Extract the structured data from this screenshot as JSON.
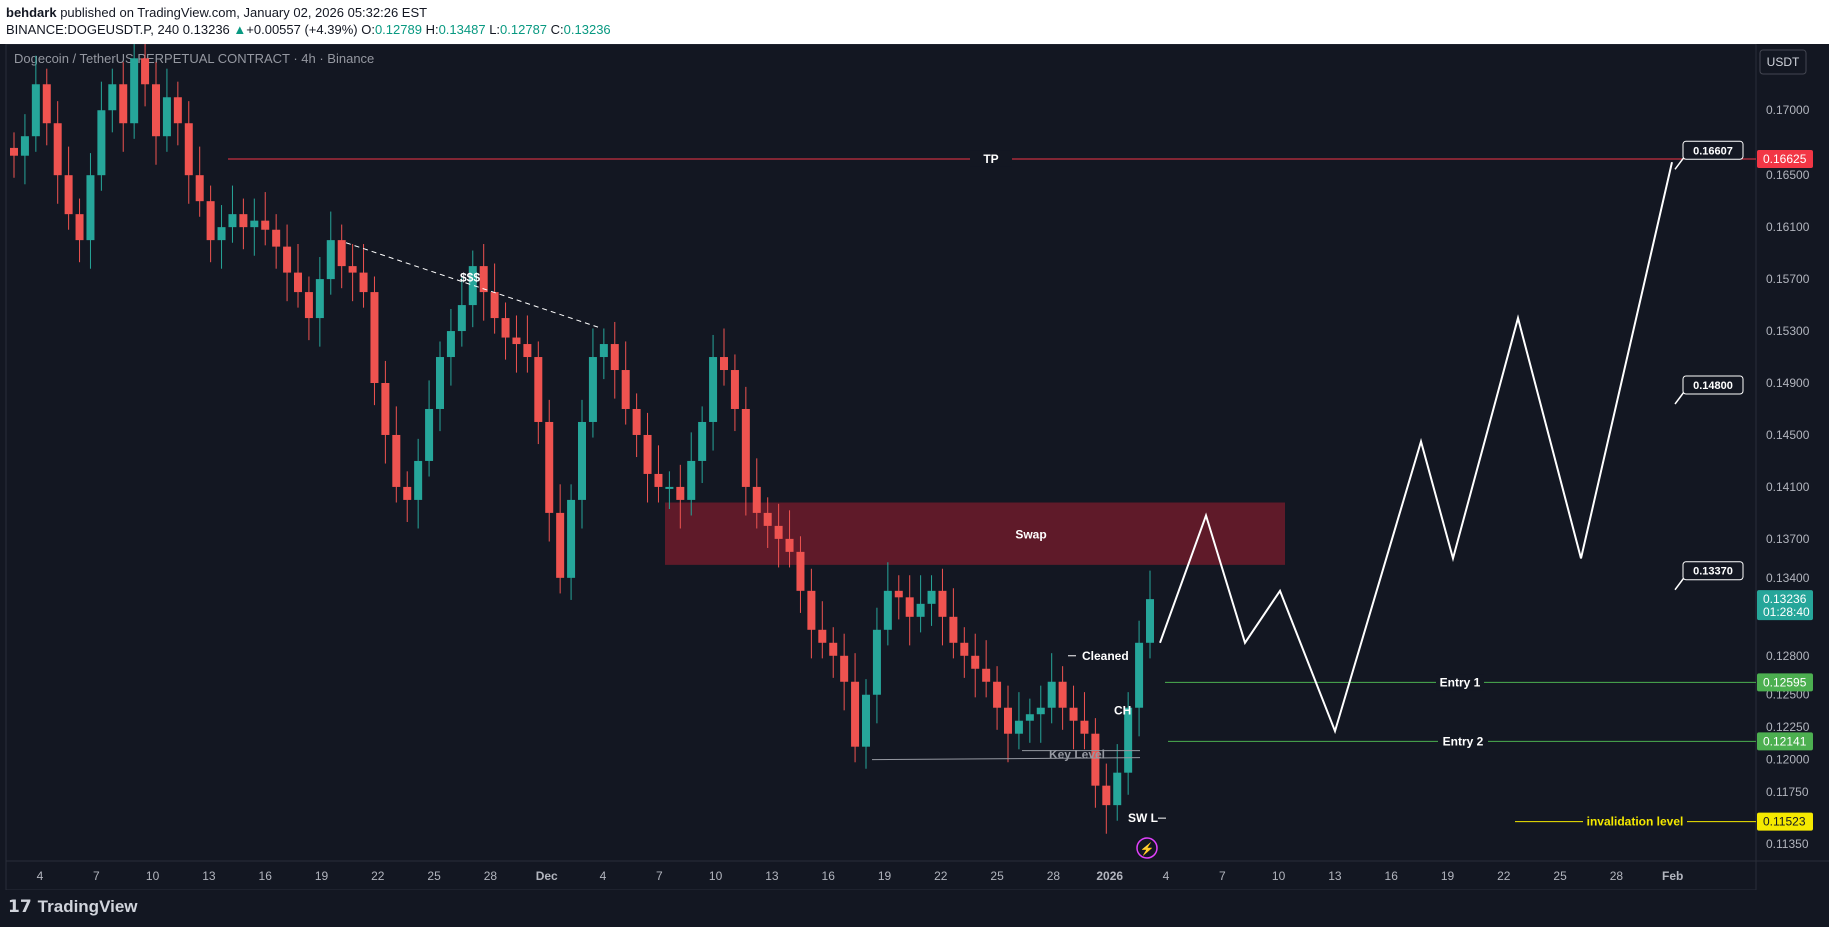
{
  "header": {
    "author": "behdark",
    "published": " published on TradingView.com, January 02, 2026 05:32:26 EST",
    "symbol": "BINANCE:DOGEUSDT.P, 240",
    "last": "0.13236",
    "change_arrow": "▲",
    "change": "+0.00557 (+4.39%)",
    "o_label": "O:",
    "o": "0.12789",
    "h_label": "H:",
    "h": "0.13487",
    "l_label": "L:",
    "l": "0.12787",
    "c_label": "C:",
    "c": "0.13236"
  },
  "chart_title": "Dogecoin / TetherUS PERPETUAL CONTRACT · 4h · Binance",
  "currency_button": "USDT",
  "footer": {
    "logo_mark": "17",
    "logo_text": "TradingView"
  },
  "colors": {
    "background": "#131722",
    "up": "#26a69a",
    "down": "#ef5350",
    "tp": "#f23645",
    "entry": "#4caf50",
    "invalidation": "#f5e900",
    "swap_zone": "#6d1b2a",
    "projection": "#ffffff"
  },
  "chart_data": {
    "type": "candlestick",
    "ylim": [
      0.1122,
      0.1751
    ],
    "y_ticks": [
      "0.17000",
      "0.16500",
      "0.16100",
      "0.15700",
      "0.15300",
      "0.14900",
      "0.14500",
      "0.14100",
      "0.13700",
      "0.13400",
      "0.12800",
      "0.12500",
      "0.12250",
      "0.12000",
      "0.11750",
      "0.11350"
    ],
    "x_ticks": [
      "4",
      "7",
      "10",
      "13",
      "16",
      "19",
      "22",
      "25",
      "28",
      "Dec",
      "4",
      "7",
      "10",
      "13",
      "16",
      "19",
      "22",
      "25",
      "28",
      "2026",
      "4",
      "7",
      "10",
      "13",
      "16",
      "19",
      "22",
      "25",
      "28",
      "Feb"
    ],
    "price_labels": [
      {
        "text": "0.16625",
        "value": 0.16625,
        "color": "#f23645"
      },
      {
        "text": "0.13236",
        "text2": "01:28:40",
        "value": 0.13236,
        "color": "#26a69a"
      },
      {
        "text": "0.12595",
        "value": 0.12595,
        "color": "#4caf50"
      },
      {
        "text": "0.12141",
        "value": 0.12141,
        "color": "#4caf50"
      },
      {
        "text": "0.11523",
        "value": 0.11523,
        "color": "#f5e900"
      }
    ],
    "horizontal_levels": [
      {
        "label": "TP",
        "value": 0.16625,
        "color": "#f23645"
      },
      {
        "label": "Entry 1",
        "value": 0.12595,
        "color": "#4caf50"
      },
      {
        "label": "Entry 2",
        "value": 0.12141,
        "color": "#4caf50"
      },
      {
        "label": "invalidation level",
        "value": 0.11523,
        "color": "#f5e900"
      },
      {
        "label": "Key Level",
        "value": 0.12,
        "color": "#9598a1"
      }
    ],
    "zones": [
      {
        "label": "Swap",
        "low": 0.135,
        "high": 0.1398,
        "start": "7 Dec",
        "end": "10 Jan"
      }
    ],
    "annotations": [
      "$$$",
      "Cleaned",
      "CH",
      "SW L"
    ],
    "callouts": [
      "0.16607",
      "0.14800",
      "0.13370"
    ],
    "close_series": [
      0.1665,
      0.168,
      0.172,
      0.169,
      0.165,
      0.162,
      0.16,
      0.165,
      0.17,
      0.172,
      0.169,
      0.174,
      0.172,
      0.168,
      0.171,
      0.169,
      0.165,
      0.163,
      0.16,
      0.161,
      0.162,
      0.161,
      0.1615,
      0.1608,
      0.1595,
      0.1575,
      0.156,
      0.154,
      0.157,
      0.16,
      0.158,
      0.1575,
      0.156,
      0.149,
      0.145,
      0.141,
      0.14,
      0.143,
      0.147,
      0.151,
      0.153,
      0.155,
      0.158,
      0.156,
      0.154,
      0.1525,
      0.152,
      0.151,
      0.146,
      0.139,
      0.134,
      0.14,
      0.146,
      0.151,
      0.152,
      0.15,
      0.147,
      0.145,
      0.142,
      0.141,
      0.141,
      0.14,
      0.143,
      0.146,
      0.151,
      0.15,
      0.147,
      0.141,
      0.139,
      0.138,
      0.137,
      0.136,
      0.133,
      0.13,
      0.129,
      0.128,
      0.126,
      0.121,
      0.125,
      0.13,
      0.133,
      0.1325,
      0.131,
      0.132,
      0.133,
      0.131,
      0.129,
      0.128,
      0.127,
      0.126,
      0.124,
      0.122,
      0.123,
      0.1235,
      0.124,
      0.126,
      0.124,
      0.123,
      0.122,
      0.118,
      0.1165,
      0.119,
      0.124,
      0.129,
      0.13236
    ],
    "projection_path": [
      {
        "x": "Jan 2",
        "y": 0.129
      },
      {
        "x": "Jan 5",
        "y": 0.1388
      },
      {
        "x": "Jan 7",
        "y": 0.129
      },
      {
        "x": "Jan 9",
        "y": 0.133
      },
      {
        "x": "Jan 12",
        "y": 0.1222
      },
      {
        "x": "Jan 16",
        "y": 0.1445
      },
      {
        "x": "Jan 18",
        "y": 0.1355
      },
      {
        "x": "Jan 22",
        "y": 0.154
      },
      {
        "x": "Jan 25",
        "y": 0.1355
      },
      {
        "x": "Jan 31",
        "y": 0.166
      }
    ]
  }
}
